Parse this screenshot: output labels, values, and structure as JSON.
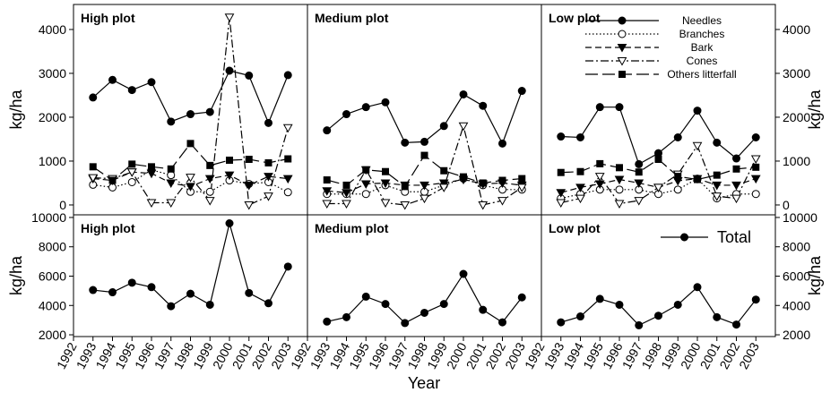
{
  "x_label": "Year",
  "chart_data": [
    {
      "type": "line",
      "title": "High plot",
      "y_label": "kg/ha",
      "x": [
        1993,
        1994,
        1995,
        1996,
        1997,
        1998,
        1999,
        2000,
        2001,
        2002,
        2003
      ],
      "xlim": [
        1992,
        2004
      ],
      "ylim": [
        -225,
        4570
      ],
      "yticks": [
        0,
        1000,
        2000,
        3000,
        4000
      ],
      "series": [
        {
          "name": "Needles",
          "color": "#000000",
          "marker": "circle",
          "filled": true,
          "dash": "solid",
          "values": [
            2450,
            2850,
            2620,
            2800,
            1900,
            2070,
            2120,
            3060,
            2950,
            1870,
            2960
          ]
        },
        {
          "name": "Branches",
          "color": "#000000",
          "marker": "circle",
          "filled": false,
          "dash": "dotted",
          "values": [
            460,
            400,
            520,
            800,
            680,
            300,
            300,
            560,
            480,
            520,
            290
          ]
        },
        {
          "name": "Bark",
          "color": "#000000",
          "marker": "triangle-down",
          "filled": true,
          "dash": "dashed",
          "values": [
            600,
            560,
            750,
            720,
            500,
            420,
            600,
            680,
            450,
            650,
            600
          ]
        },
        {
          "name": "Cones",
          "color": "#000000",
          "marker": "triangle-down",
          "filled": false,
          "dash": "dashdot",
          "values": [
            620,
            600,
            750,
            50,
            50,
            630,
            100,
            4280,
            0,
            200,
            1760
          ]
        },
        {
          "name": "Others litterfall",
          "color": "#000000",
          "marker": "square",
          "filled": true,
          "dash": "longdash",
          "values": [
            870,
            560,
            930,
            870,
            820,
            1400,
            900,
            1020,
            1040,
            960,
            1050
          ]
        }
      ]
    },
    {
      "type": "line",
      "title": "Medium plot",
      "x": [
        1993,
        1994,
        1995,
        1996,
        1997,
        1998,
        1999,
        2000,
        2001,
        2002,
        2003
      ],
      "xlim": [
        1992,
        2004
      ],
      "ylim": [
        -225,
        4570
      ],
      "series": [
        {
          "name": "Needles",
          "color": "#000000",
          "marker": "circle",
          "filled": true,
          "dash": "solid",
          "values": [
            1700,
            2070,
            2230,
            2340,
            1420,
            1440,
            1800,
            2520,
            2260,
            1400,
            2600
          ]
        },
        {
          "name": "Branches",
          "color": "#000000",
          "marker": "circle",
          "filled": false,
          "dash": "dotted",
          "values": [
            250,
            250,
            250,
            450,
            300,
            300,
            450,
            600,
            450,
            350,
            350
          ]
        },
        {
          "name": "Bark",
          "color": "#000000",
          "marker": "triangle-down",
          "filled": true,
          "dash": "dashed",
          "values": [
            320,
            280,
            480,
            500,
            450,
            450,
            500,
            580,
            480,
            500,
            450
          ]
        },
        {
          "name": "Cones",
          "color": "#000000",
          "marker": "triangle-down",
          "filled": false,
          "dash": "dashdot",
          "values": [
            30,
            30,
            800,
            50,
            0,
            150,
            400,
            1800,
            0,
            100,
            400
          ]
        },
        {
          "name": "Others litterfall",
          "color": "#000000",
          "marker": "square",
          "filled": true,
          "dash": "longdash",
          "values": [
            570,
            450,
            800,
            760,
            420,
            1130,
            780,
            640,
            500,
            560,
            600
          ]
        }
      ]
    },
    {
      "type": "line",
      "title": "Low plot",
      "y_label": "kg/ha",
      "legend": "upper right",
      "x": [
        1993,
        1994,
        1995,
        1996,
        1997,
        1998,
        1999,
        2000,
        2001,
        2002,
        2003
      ],
      "xlim": [
        1992,
        2004
      ],
      "ylim": [
        -225,
        4570
      ],
      "yticks": [
        0,
        1000,
        2000,
        3000,
        4000
      ],
      "series": [
        {
          "name": "Needles",
          "color": "#000000",
          "marker": "circle",
          "filled": true,
          "dash": "solid",
          "values": [
            1560,
            1540,
            2230,
            2230,
            930,
            1180,
            1540,
            2150,
            1420,
            1060,
            1540
          ]
        },
        {
          "name": "Branches",
          "color": "#000000",
          "marker": "circle",
          "filled": false,
          "dash": "dotted",
          "values": [
            150,
            250,
            350,
            350,
            350,
            250,
            350,
            600,
            150,
            250,
            250
          ]
        },
        {
          "name": "Bark",
          "color": "#000000",
          "marker": "triangle-down",
          "filled": true,
          "dash": "dashed",
          "values": [
            280,
            400,
            480,
            580,
            500,
            400,
            550,
            600,
            450,
            450,
            600
          ]
        },
        {
          "name": "Cones",
          "color": "#000000",
          "marker": "triangle-down",
          "filled": false,
          "dash": "dashdot",
          "values": [
            50,
            150,
            650,
            30,
            100,
            400,
            700,
            1350,
            200,
            150,
            1050
          ]
        },
        {
          "name": "Others litterfall",
          "color": "#000000",
          "marker": "square",
          "filled": true,
          "dash": "longdash",
          "values": [
            740,
            760,
            940,
            850,
            750,
            1040,
            650,
            580,
            680,
            820,
            860
          ]
        }
      ]
    },
    {
      "type": "line",
      "title": "High plot",
      "y_label": "kg/ha",
      "x": [
        1993,
        1994,
        1995,
        1996,
        1997,
        1998,
        1999,
        2000,
        2001,
        2002,
        2003
      ],
      "xlim": [
        1992,
        2004
      ],
      "xticks": [
        1992,
        1993,
        1994,
        1995,
        1996,
        1997,
        1998,
        1999,
        2000,
        2001,
        2002,
        2003
      ],
      "ylim": [
        1880,
        10180
      ],
      "yticks": [
        2000,
        4000,
        6000,
        8000,
        10000
      ],
      "series": [
        {
          "name": "Total",
          "color": "#000000",
          "marker": "circle",
          "filled": true,
          "dash": "solid",
          "values": [
            5050,
            4900,
            5550,
            5250,
            3950,
            4800,
            4050,
            9600,
            4850,
            4150,
            6650
          ]
        }
      ]
    },
    {
      "type": "line",
      "title": "Medium plot",
      "x": [
        1993,
        1994,
        1995,
        1996,
        1997,
        1998,
        1999,
        2000,
        2001,
        2002,
        2003
      ],
      "xlim": [
        1992,
        2004
      ],
      "xticks": [
        1992,
        1993,
        1994,
        1995,
        1996,
        1997,
        1998,
        1999,
        2000,
        2001,
        2002,
        2003
      ],
      "ylim": [
        1880,
        10180
      ],
      "series": [
        {
          "name": "Total",
          "color": "#000000",
          "marker": "circle",
          "filled": true,
          "dash": "solid",
          "values": [
            2900,
            3200,
            4600,
            4100,
            2800,
            3500,
            4100,
            6150,
            3700,
            2850,
            4550
          ]
        }
      ]
    },
    {
      "type": "line",
      "title": "Low plot",
      "y_label": "kg/ha",
      "legend": "upper right",
      "x": [
        1993,
        1994,
        1995,
        1996,
        1997,
        1998,
        1999,
        2000,
        2001,
        2002,
        2003
      ],
      "xlim": [
        1992,
        2004
      ],
      "xticks": [
        1992,
        1993,
        1994,
        1995,
        1996,
        1997,
        1998,
        1999,
        2000,
        2001,
        2002,
        2003
      ],
      "ylim": [
        1880,
        10180
      ],
      "yticks": [
        2000,
        4000,
        6000,
        8000,
        10000
      ],
      "series": [
        {
          "name": "Total",
          "color": "#000000",
          "marker": "circle",
          "filled": true,
          "dash": "solid",
          "values": [
            2850,
            3250,
            4450,
            4050,
            2650,
            3300,
            4050,
            5250,
            3200,
            2700,
            4400
          ]
        }
      ]
    }
  ]
}
